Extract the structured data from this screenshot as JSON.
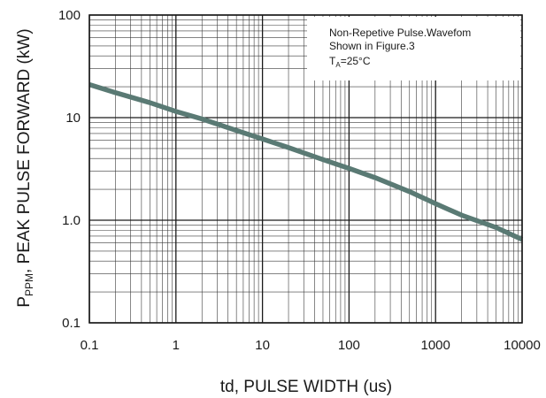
{
  "chart_data": {
    "type": "line",
    "xscale": "log",
    "yscale": "log",
    "xlim": [
      0.1,
      10000
    ],
    "ylim": [
      0.1,
      100
    ],
    "grid": true,
    "xticks": [
      "0.1",
      "1",
      "10",
      "100",
      "1000",
      "10000"
    ],
    "yticks": [
      "0.1",
      "1.0",
      "10",
      "100"
    ],
    "xlabel": "td, PULSE WIDTH (us)",
    "ylabel": {
      "prefix": "P",
      "subscript": "PPM",
      "text": ", PEAK PULSE  FORWARD (kW)"
    },
    "annotation": {
      "line1": "Non-Repetive    Pulse.Wavefom",
      "line2": "Shown in Figure.3",
      "line3_prefix": "T",
      "line3_sub": "A",
      "line3_rest": "=25°C"
    },
    "series": [
      {
        "color": "#5a7a74",
        "x": [
          0.1,
          0.2,
          0.5,
          1,
          2,
          5,
          10,
          20,
          50,
          100,
          200,
          500,
          1000,
          2000,
          5000,
          10000
        ],
        "y": [
          21,
          17.5,
          14,
          11.5,
          9.7,
          7.5,
          6.2,
          5.1,
          3.9,
          3.2,
          2.6,
          1.9,
          1.45,
          1.12,
          0.85,
          0.65
        ]
      }
    ]
  }
}
